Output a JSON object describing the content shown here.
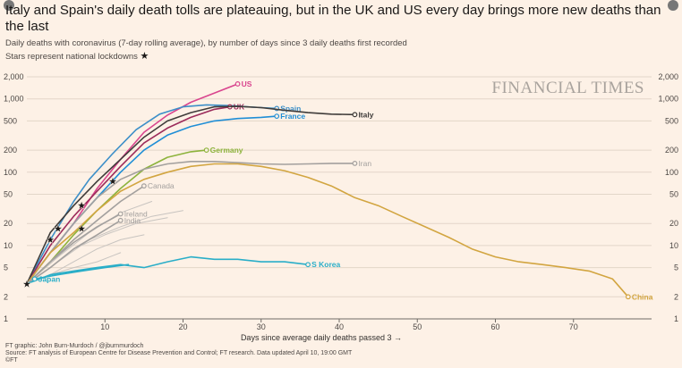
{
  "title": "Italy and Spain's daily death tolls are plateauing, but in the UK and US every day brings more new deaths than the last",
  "subtitle": "Daily deaths with coronavirus (7-day rolling average), by number of days since 3 daily deaths first recorded",
  "subtitle2": "Stars represent national lockdowns",
  "star_glyph": "★",
  "watermark": "FINANCIAL TIMES",
  "footer": {
    "credit": "FT graphic: John Burn-Murdoch / @jburnmurdoch",
    "source": "Source: FT analysis of European Centre for Disease Prevention and Control; FT research. Data updated April 10, 19:00 GMT",
    "copyright": "©FT"
  },
  "chart_data": {
    "type": "line",
    "xlabel": "Days since average daily deaths passed 3",
    "xlim": [
      0,
      80
    ],
    "ylim": [
      1,
      2000
    ],
    "yscale": "log",
    "xticks": [
      10,
      20,
      30,
      40,
      50,
      60,
      70
    ],
    "yticks": [
      1,
      2,
      5,
      10,
      20,
      50,
      100,
      200,
      500,
      1000,
      2000
    ],
    "ytick_labels": [
      "1",
      "2",
      "5",
      "10",
      "20",
      "50",
      "100",
      "200",
      "500",
      "1,000",
      "2,000"
    ],
    "grid": true,
    "series": [
      {
        "name": "US",
        "color": "#d9458e",
        "label_position": "end",
        "x": [
          0,
          3,
          6,
          9,
          12,
          15,
          18,
          21,
          24,
          27
        ],
        "y": [
          3,
          8,
          20,
          60,
          150,
          350,
          600,
          900,
          1200,
          1600
        ]
      },
      {
        "name": "Spain",
        "color": "#3d8fc8",
        "label_position": "end",
        "x": [
          0,
          3,
          6,
          8,
          11,
          14,
          17,
          20,
          23,
          26,
          29,
          32
        ],
        "y": [
          3,
          12,
          40,
          80,
          180,
          380,
          620,
          780,
          830,
          810,
          770,
          740
        ]
      },
      {
        "name": "UK",
        "color": "#9c2c5b",
        "label_position": "end",
        "x": [
          0,
          3,
          6,
          9,
          12,
          15,
          18,
          21,
          24,
          26
        ],
        "y": [
          3,
          10,
          25,
          55,
          120,
          250,
          400,
          560,
          720,
          780
        ]
      },
      {
        "name": "France",
        "color": "#1f8ed6",
        "label_position": "end",
        "x": [
          0,
          3,
          6,
          9,
          12,
          15,
          18,
          21,
          24,
          27,
          30,
          32
        ],
        "y": [
          3,
          8,
          20,
          45,
          100,
          200,
          320,
          420,
          500,
          540,
          560,
          580
        ]
      },
      {
        "name": "Italy",
        "color": "#3f3c3a",
        "label_position": "end",
        "x": [
          0,
          3,
          6,
          9,
          12,
          15,
          18,
          21,
          24,
          27,
          30,
          33,
          36,
          39,
          42
        ],
        "y": [
          3,
          15,
          35,
          75,
          150,
          300,
          500,
          650,
          780,
          790,
          760,
          700,
          650,
          620,
          610
        ]
      },
      {
        "name": "Germany",
        "color": "#8db33c",
        "label_position": "end",
        "x": [
          0,
          3,
          6,
          9,
          12,
          15,
          18,
          21,
          23
        ],
        "y": [
          3,
          6,
          14,
          30,
          60,
          110,
          160,
          190,
          200
        ]
      },
      {
        "name": "Iran",
        "color": "#a3a09e",
        "label_position": "end",
        "x": [
          0,
          3,
          6,
          9,
          12,
          15,
          18,
          21,
          24,
          27,
          30,
          33,
          36,
          39,
          42
        ],
        "y": [
          3,
          8,
          20,
          45,
          80,
          110,
          130,
          140,
          140,
          135,
          130,
          128,
          130,
          132,
          132
        ]
      },
      {
        "name": "China",
        "color": "#d2a540",
        "label_position": "end",
        "x": [
          0,
          3,
          6,
          9,
          12,
          15,
          18,
          21,
          24,
          27,
          30,
          33,
          36,
          39,
          42,
          45,
          48,
          51,
          54,
          57,
          60,
          63,
          66,
          69,
          72,
          75,
          77
        ],
        "y": [
          3,
          8,
          15,
          30,
          55,
          80,
          100,
          120,
          130,
          130,
          120,
          105,
          85,
          65,
          45,
          35,
          25,
          18,
          13,
          9,
          7,
          6,
          5.5,
          5,
          4.5,
          3.5,
          2
        ]
      },
      {
        "name": "Canada",
        "color": "#a3a09e",
        "label_position": "end",
        "x": [
          0,
          3,
          6,
          9,
          12,
          15
        ],
        "y": [
          3,
          6,
          12,
          22,
          40,
          65
        ]
      },
      {
        "name": "Ireland",
        "color": "#a3a09e",
        "label_position": "end",
        "x": [
          0,
          3,
          6,
          9,
          12
        ],
        "y": [
          3,
          6,
          11,
          18,
          27
        ]
      },
      {
        "name": "India",
        "color": "#a3a09e",
        "label_position": "end",
        "x": [
          0,
          3,
          6,
          9,
          12
        ],
        "y": [
          3,
          5,
          9,
          14,
          22
        ]
      },
      {
        "name": "S Korea",
        "color": "#2aaec8",
        "label_position": "end",
        "x": [
          0,
          3,
          6,
          9,
          12,
          15,
          18,
          21,
          24,
          27,
          30,
          33,
          36
        ],
        "y": [
          3,
          4,
          4.5,
          5,
          5.5,
          5,
          6,
          7,
          6.5,
          6.5,
          6,
          6,
          5.5
        ]
      },
      {
        "name": "Japan",
        "color": "#2aaec8",
        "label_position": "start",
        "x": [
          1,
          4,
          7,
          10,
          13
        ],
        "y": [
          3.5,
          4,
          4.5,
          5,
          5.5
        ]
      },
      {
        "color": "#c8c4c0",
        "x": [
          0,
          4,
          8,
          12,
          16,
          20
        ],
        "y": [
          3,
          6,
          12,
          18,
          25,
          30
        ]
      },
      {
        "color": "#c8c4c0",
        "x": [
          0,
          3,
          6,
          10,
          14,
          18
        ],
        "y": [
          3,
          5,
          9,
          14,
          20,
          24
        ]
      },
      {
        "color": "#c8c4c0",
        "x": [
          0,
          3,
          6,
          9,
          12,
          15
        ],
        "y": [
          3,
          4,
          6,
          9,
          12,
          14
        ]
      },
      {
        "color": "#c8c4c0",
        "x": [
          0,
          3,
          6,
          9,
          12
        ],
        "y": [
          3,
          4,
          5,
          6,
          8
        ]
      },
      {
        "color": "#c8c4c0",
        "x": [
          0,
          4,
          8,
          12,
          16
        ],
        "y": [
          3,
          7,
          15,
          28,
          40
        ]
      }
    ],
    "lockdowns": [
      {
        "x": 0,
        "y": 3
      },
      {
        "x": 3,
        "y": 12
      },
      {
        "x": 4,
        "y": 17
      },
      {
        "x": 7,
        "y": 17
      },
      {
        "x": 7,
        "y": 35
      },
      {
        "x": 11,
        "y": 75
      }
    ]
  }
}
